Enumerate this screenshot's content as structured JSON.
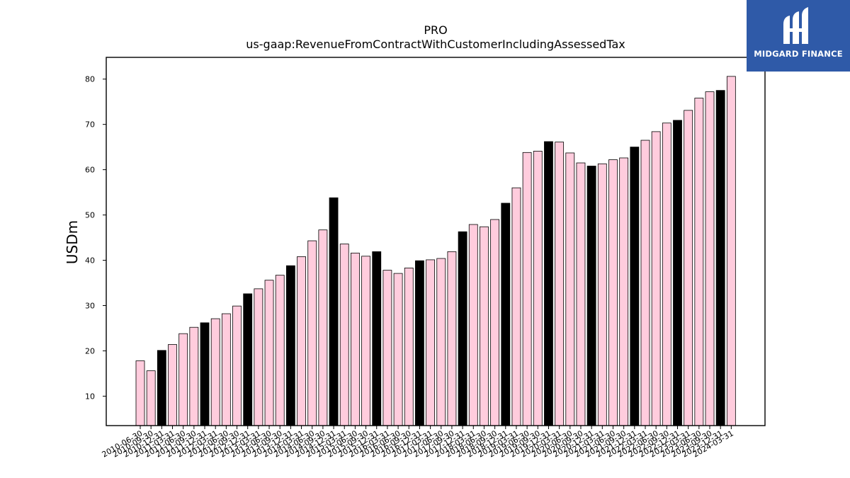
{
  "logo": {
    "text": "MIDGARD FINANCE"
  },
  "chart_data": {
    "type": "bar",
    "title": "PRO",
    "subtitle": "us-gaap:RevenueFromContractWithCustomerIncludingAssessedTax",
    "xlabel": "",
    "ylabel": "USDm",
    "ylim": [
      3.5,
      84.8
    ],
    "yticks": [
      10,
      20,
      30,
      40,
      50,
      60,
      70,
      80
    ],
    "grid": false,
    "colors": {
      "quarter": "#ffccdd",
      "fiscal_year_end": "#000000",
      "edge": "#000000"
    },
    "categories": [
      "2010-06-30",
      "2010-09-30",
      "2010-12-31",
      "2011-03-31",
      "2011-06-30",
      "2011-09-30",
      "2011-12-31",
      "2012-03-31",
      "2012-06-30",
      "2012-09-30",
      "2012-12-31",
      "2013-03-31",
      "2013-06-30",
      "2013-09-30",
      "2013-12-31",
      "2014-03-31",
      "2014-06-30",
      "2014-09-30",
      "2014-12-31",
      "2015-03-31",
      "2015-06-30",
      "2015-09-30",
      "2015-12-31",
      "2016-03-31",
      "2016-06-30",
      "2016-09-30",
      "2016-12-31",
      "2017-03-31",
      "2017-06-30",
      "2017-09-30",
      "2017-12-31",
      "2018-03-31",
      "2018-06-30",
      "2018-09-30",
      "2018-12-31",
      "2019-03-31",
      "2019-06-30",
      "2019-09-30",
      "2019-12-31",
      "2020-03-31",
      "2020-06-30",
      "2020-09-30",
      "2020-12-31",
      "2021-03-31",
      "2021-06-30",
      "2021-09-30",
      "2021-12-31",
      "2022-03-31",
      "2022-06-30",
      "2022-09-30",
      "2022-12-31",
      "2023-03-31",
      "2023-06-30",
      "2023-09-30",
      "2023-12-31",
      "2024-03-31"
    ],
    "values": [
      17.8,
      15.6,
      20.1,
      21.4,
      23.8,
      25.2,
      26.2,
      27.1,
      28.2,
      29.9,
      32.6,
      33.7,
      35.6,
      36.7,
      38.8,
      40.8,
      44.3,
      46.7,
      53.8,
      43.6,
      41.6,
      40.9,
      41.9,
      37.8,
      37.1,
      38.3,
      39.9,
      40.1,
      40.4,
      41.9,
      46.3,
      47.9,
      47.4,
      49.0,
      52.6,
      56.0,
      63.8,
      64.1,
      66.2,
      66.1,
      63.7,
      61.5,
      60.8,
      61.3,
      62.2,
      62.6,
      65.0,
      66.5,
      68.4,
      70.3,
      70.9,
      73.1,
      75.8,
      77.2,
      77.5,
      80.6
    ],
    "highlight": [
      false,
      false,
      true,
      false,
      false,
      false,
      true,
      false,
      false,
      false,
      true,
      false,
      false,
      false,
      true,
      false,
      false,
      false,
      true,
      false,
      false,
      false,
      true,
      false,
      false,
      false,
      true,
      false,
      false,
      false,
      true,
      false,
      false,
      false,
      true,
      false,
      false,
      false,
      true,
      false,
      false,
      false,
      true,
      false,
      false,
      false,
      true,
      false,
      false,
      false,
      true,
      false,
      false,
      false,
      true,
      false
    ]
  }
}
